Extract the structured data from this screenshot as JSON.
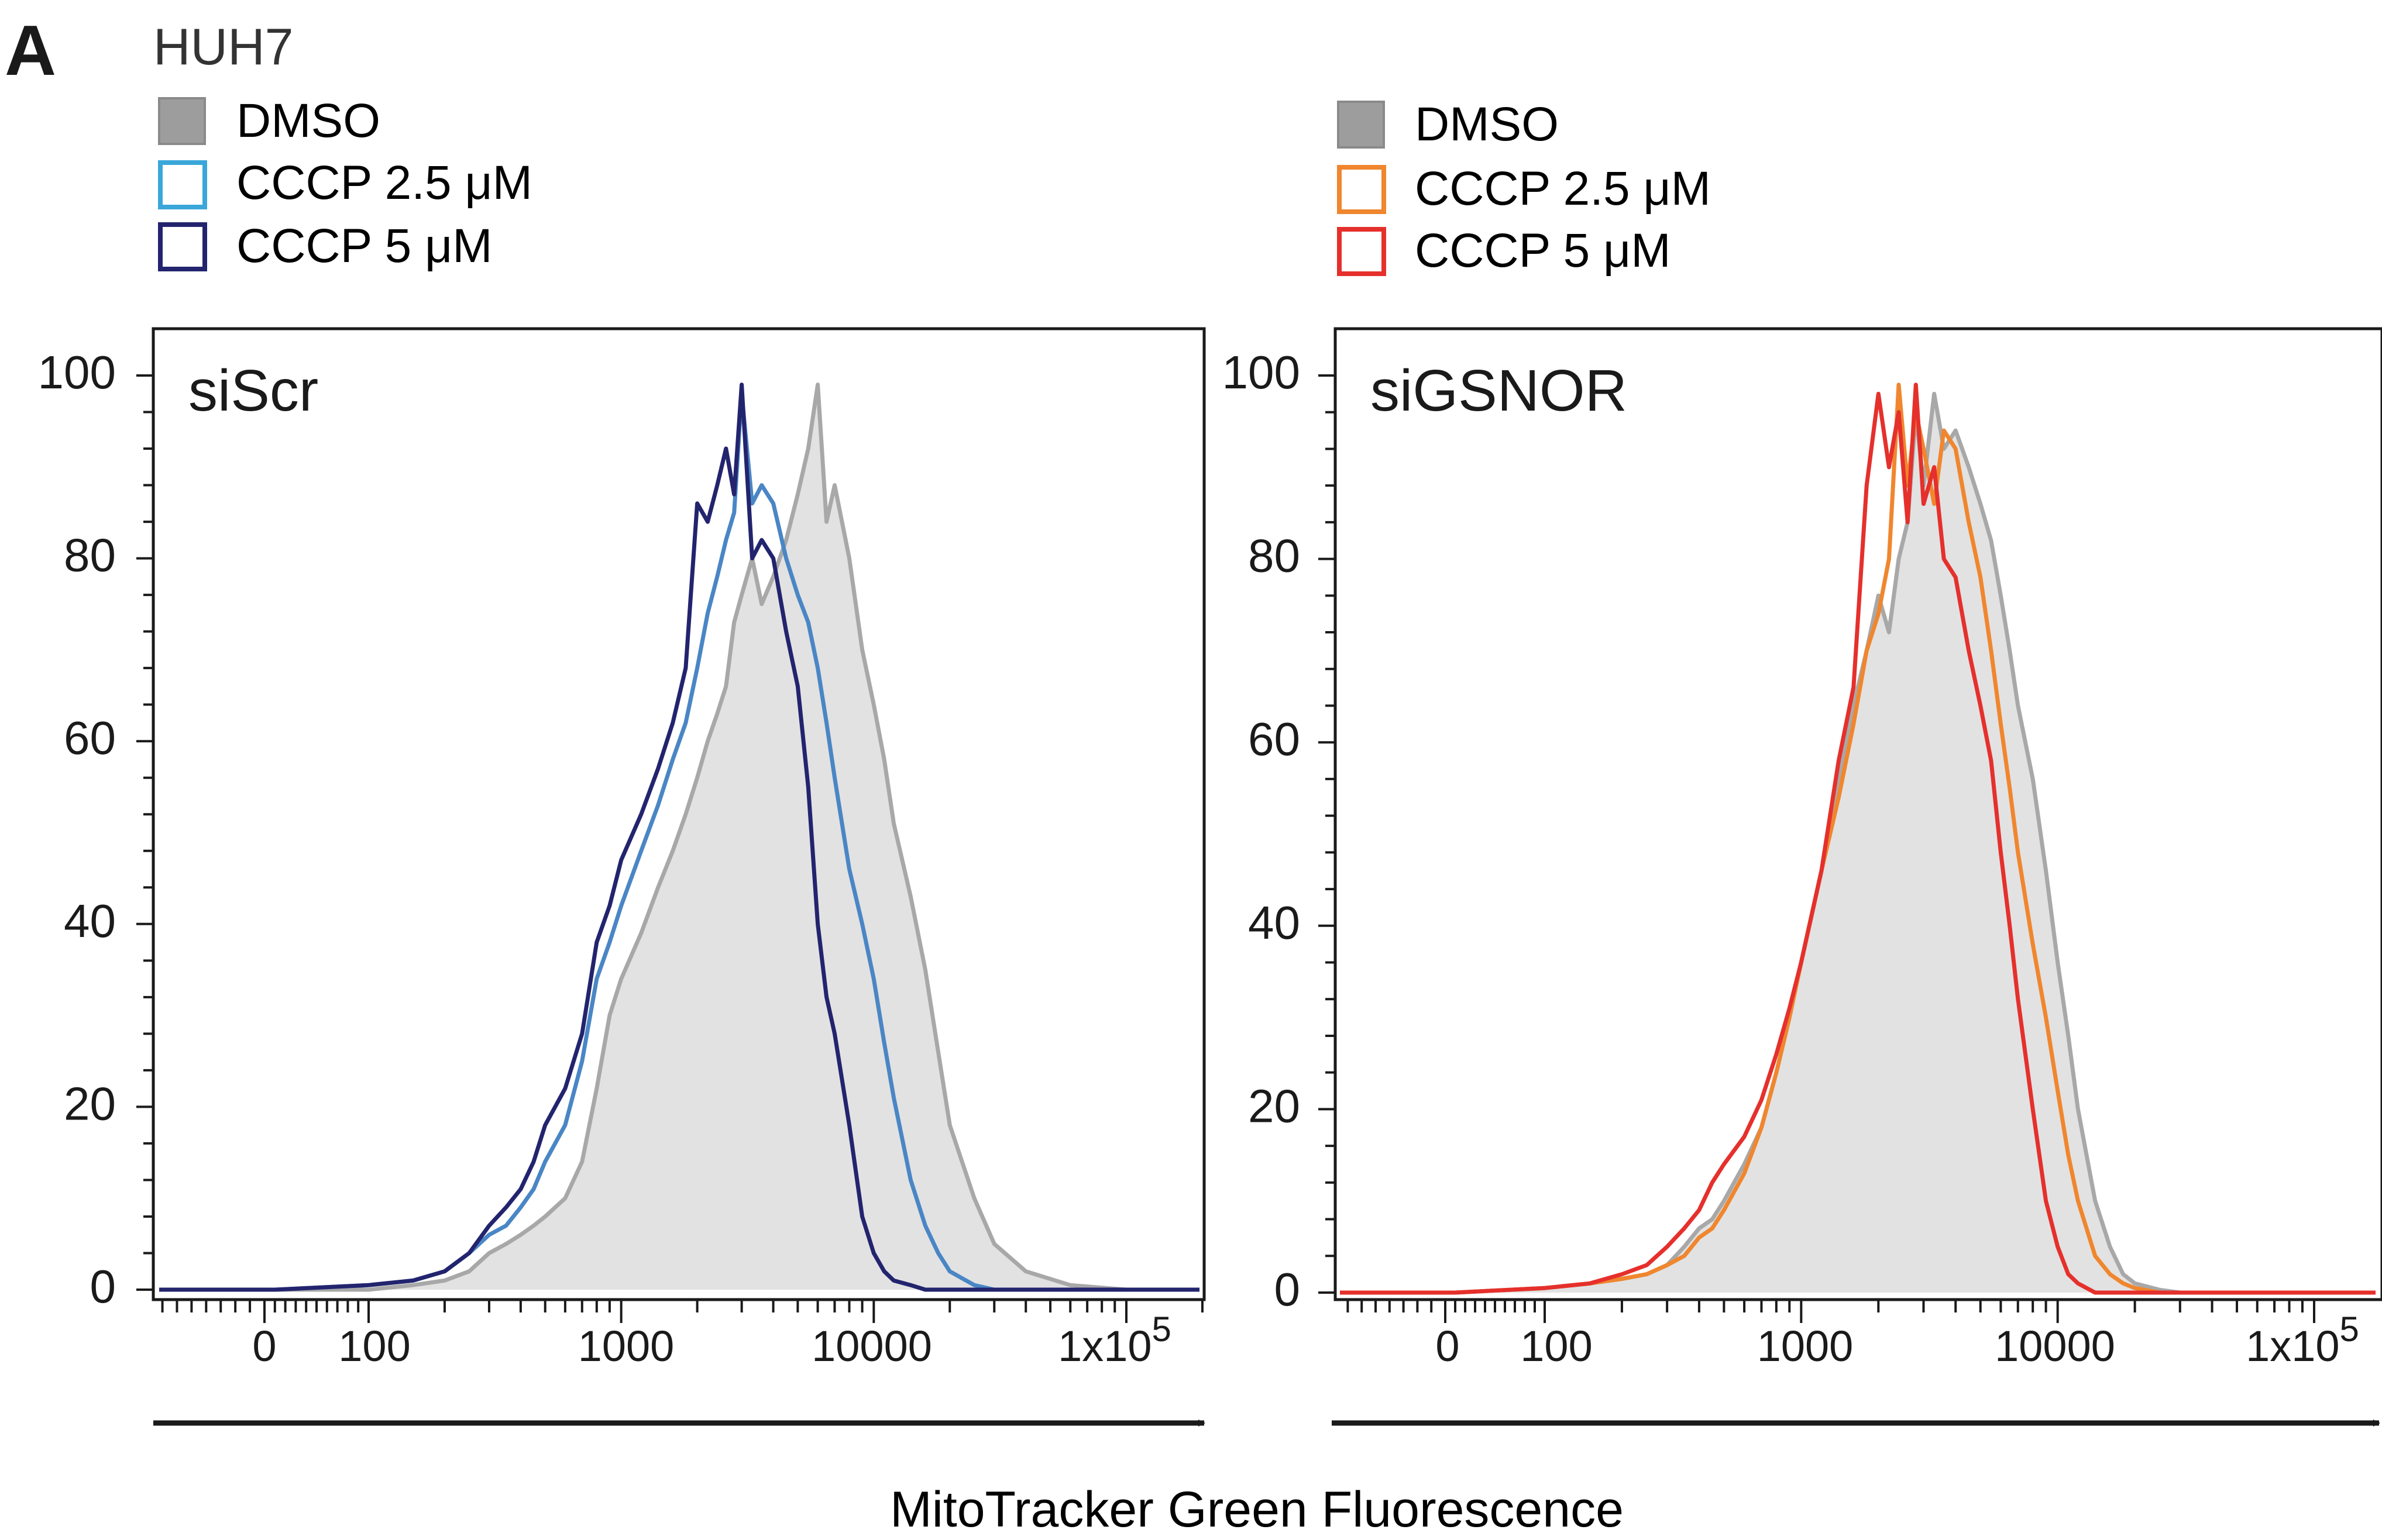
{
  "figure": {
    "panel_letter": "A",
    "cell_line": "HUH7",
    "xlabel": "MitoTracker Green Fluorescence"
  },
  "colors": {
    "dmso_fill": "#e2e2e2",
    "dmso_line": "#a8a8a8",
    "siscr_cccp_2_5": "#4a86c5",
    "siscr_cccp_5": "#23246e",
    "sigsnor_cccp_2_5": "#f0862e",
    "sigsnor_cccp_5": "#e5302c",
    "legend_siscr_2_5_box": "#3aa7d8",
    "axis": "#1a1a1a"
  },
  "legends": [
    {
      "items": [
        {
          "label": "DMSO",
          "swatch": "filled-grey"
        },
        {
          "label": "CCCP 2.5 μM",
          "swatch": "outline-light-blue"
        },
        {
          "label": "CCCP 5 μM",
          "swatch": "outline-dark-blue"
        }
      ]
    },
    {
      "items": [
        {
          "label": "DMSO",
          "swatch": "filled-grey"
        },
        {
          "label": "CCCP 2.5 μM",
          "swatch": "outline-orange"
        },
        {
          "label": "CCCP 5 μM",
          "swatch": "outline-red"
        }
      ]
    }
  ],
  "chart_data": [
    {
      "type": "area",
      "title": "siScr",
      "xscale": "biexponential (log above ~100)",
      "x_ticks": [
        "0",
        "100",
        "1000",
        "10000",
        "1x10^5"
      ],
      "y_ticks": [
        "0",
        "20",
        "40",
        "60",
        "80",
        "100"
      ],
      "ylim": [
        0,
        100
      ],
      "x": [
        10,
        100,
        150,
        200,
        250,
        300,
        350,
        400,
        450,
        500,
        600,
        700,
        800,
        900,
        1000,
        1200,
        1400,
        1600,
        1800,
        2000,
        2200,
        2400,
        2600,
        2800,
        3000,
        3300,
        3600,
        4000,
        4500,
        5000,
        5500,
        6000,
        6500,
        7000,
        8000,
        9000,
        10000,
        11000,
        12000,
        14000,
        16000,
        18000,
        20000,
        25000,
        30000,
        40000,
        60000,
        100000
      ],
      "series": [
        {
          "name": "DMSO",
          "fill": true,
          "values": [
            0,
            0,
            0.5,
            1,
            2,
            4,
            5,
            6,
            7,
            8,
            10,
            14,
            22,
            30,
            34,
            39,
            44,
            48,
            52,
            56,
            60,
            63,
            66,
            73,
            76,
            80,
            75,
            78,
            82,
            87,
            92,
            99,
            84,
            88,
            80,
            70,
            64,
            58,
            51,
            43,
            35,
            26,
            18,
            10,
            5,
            2,
            0.5,
            0
          ]
        },
        {
          "name": "CCCP 2.5 μM",
          "values": [
            0,
            0.5,
            1,
            2,
            4,
            6,
            7,
            9,
            11,
            14,
            18,
            25,
            34,
            38,
            42,
            48,
            53,
            58,
            62,
            68,
            74,
            78,
            82,
            85,
            98,
            86,
            88,
            86,
            80,
            76,
            73,
            68,
            62,
            56,
            46,
            40,
            34,
            27,
            21,
            12,
            7,
            4,
            2,
            0.5,
            0,
            0,
            0,
            0
          ]
        },
        {
          "name": "CCCP 5 μM",
          "values": [
            0,
            0.5,
            1,
            2,
            4,
            7,
            9,
            11,
            14,
            18,
            22,
            28,
            38,
            42,
            47,
            52,
            57,
            62,
            68,
            86,
            84,
            88,
            92,
            87,
            99,
            80,
            82,
            80,
            72,
            66,
            55,
            40,
            32,
            28,
            18,
            8,
            4,
            2,
            1,
            0.5,
            0,
            0,
            0,
            0,
            0,
            0,
            0,
            0
          ]
        }
      ]
    },
    {
      "type": "area",
      "title": "siGSNOR",
      "xscale": "biexponential (log above ~100)",
      "x_ticks": [
        "0",
        "100",
        "1000",
        "10000",
        "1x10^5"
      ],
      "y_ticks": [
        "0",
        "20",
        "40",
        "60",
        "80",
        "100"
      ],
      "ylim": [
        0,
        100
      ],
      "x": [
        10,
        100,
        150,
        200,
        250,
        300,
        350,
        400,
        450,
        500,
        600,
        700,
        800,
        900,
        1000,
        1200,
        1400,
        1600,
        1800,
        2000,
        2200,
        2400,
        2600,
        2800,
        3000,
        3300,
        3600,
        4000,
        4500,
        5000,
        5500,
        6000,
        6500,
        7000,
        8000,
        9000,
        10000,
        11000,
        12000,
        14000,
        16000,
        18000,
        20000,
        25000,
        30000,
        40000,
        60000,
        100000
      ],
      "series": [
        {
          "name": "DMSO",
          "fill": true,
          "values": [
            0,
            0.5,
            1,
            1.5,
            2,
            3,
            5,
            7,
            8,
            10,
            14,
            18,
            24,
            30,
            36,
            46,
            56,
            64,
            70,
            76,
            72,
            80,
            84,
            96,
            88,
            98,
            92,
            94,
            90,
            86,
            82,
            76,
            70,
            64,
            56,
            46,
            36,
            28,
            20,
            10,
            5,
            2,
            1,
            0.3,
            0,
            0,
            0,
            0
          ]
        },
        {
          "name": "CCCP 2.5 μM",
          "values": [
            0,
            0.5,
            1,
            1.5,
            2,
            3,
            4,
            6,
            7,
            9,
            13,
            18,
            24,
            30,
            36,
            46,
            54,
            62,
            70,
            74,
            80,
            99,
            88,
            96,
            92,
            86,
            94,
            92,
            84,
            78,
            70,
            62,
            55,
            48,
            38,
            30,
            22,
            15,
            10,
            4,
            2,
            1,
            0.5,
            0,
            0,
            0,
            0,
            0
          ]
        },
        {
          "name": "CCCP 5 μM",
          "values": [
            0,
            0.5,
            1,
            2,
            3,
            5,
            7,
            9,
            12,
            14,
            17,
            21,
            26,
            31,
            36,
            46,
            58,
            66,
            88,
            98,
            90,
            96,
            84,
            99,
            86,
            90,
            80,
            78,
            70,
            64,
            58,
            48,
            40,
            32,
            20,
            10,
            5,
            2,
            1,
            0,
            0,
            0,
            0,
            0,
            0,
            0,
            0,
            0
          ]
        }
      ]
    }
  ]
}
